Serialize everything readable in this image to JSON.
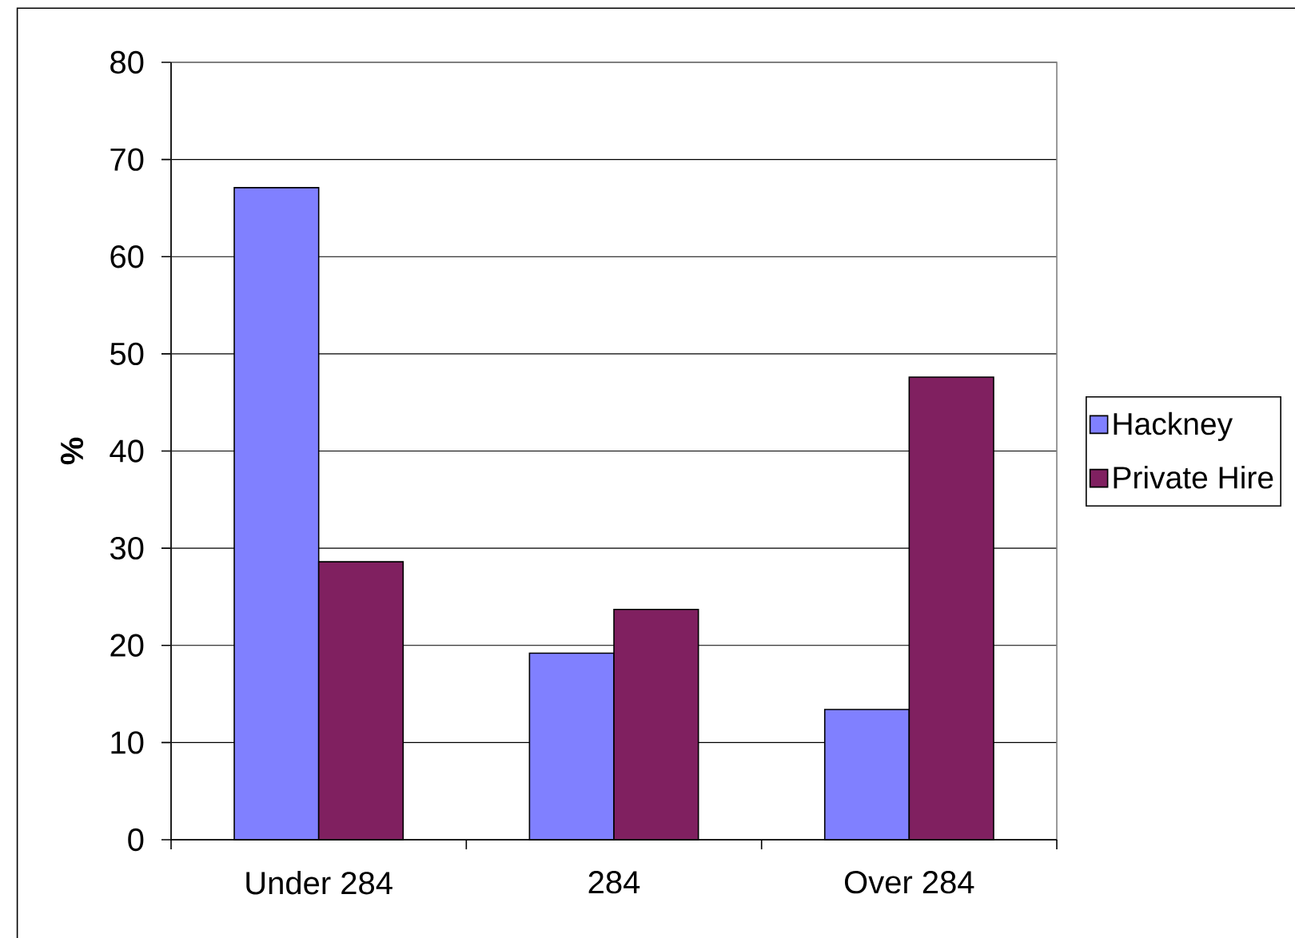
{
  "chart_data": {
    "type": "bar",
    "ylabel": "%",
    "categories": [
      "Under 284",
      "284",
      "Over 284"
    ],
    "series": [
      {
        "name": "Hackney",
        "color": "#8080ff",
        "values": [
          67.1,
          19.2,
          13.4
        ]
      },
      {
        "name": "Private Hire",
        "color": "#802060",
        "values": [
          28.6,
          23.7,
          47.6
        ]
      }
    ],
    "ylim": [
      0,
      80
    ],
    "yticks": [
      0,
      10,
      20,
      30,
      40,
      50,
      60,
      70,
      80
    ],
    "grid": "y",
    "legend": "right"
  }
}
